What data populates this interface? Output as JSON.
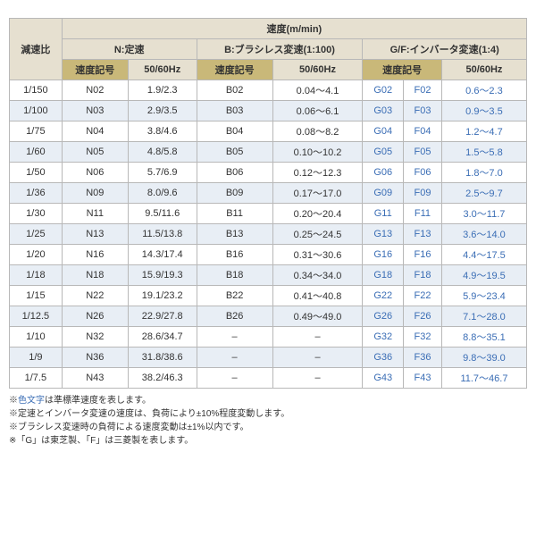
{
  "headers": {
    "ratio": "減速比",
    "speed": "速度(m/min)",
    "n": "N:定速",
    "b": "B:ブラシレス変速(1:100)",
    "gf": "G/F:インバータ変速(1:4)",
    "code": "速度記号",
    "hz": "50/60Hz"
  },
  "rows": [
    {
      "ratio": "1/150",
      "n_code": "N02",
      "n_hz": "1.9/2.3",
      "b_code": "B02",
      "b_hz": "0.04～4.1",
      "g_code": "G02",
      "f_code": "F02",
      "gf_hz": "0.6～2.3"
    },
    {
      "ratio": "1/100",
      "n_code": "N03",
      "n_hz": "2.9/3.5",
      "b_code": "B03",
      "b_hz": "0.06～6.1",
      "g_code": "G03",
      "f_code": "F03",
      "gf_hz": "0.9～3.5"
    },
    {
      "ratio": "1/75",
      "n_code": "N04",
      "n_hz": "3.8/4.6",
      "b_code": "B04",
      "b_hz": "0.08～8.2",
      "g_code": "G04",
      "f_code": "F04",
      "gf_hz": "1.2～4.7"
    },
    {
      "ratio": "1/60",
      "n_code": "N05",
      "n_hz": "4.8/5.8",
      "b_code": "B05",
      "b_hz": "0.10～10.2",
      "g_code": "G05",
      "f_code": "F05",
      "gf_hz": "1.5～5.8"
    },
    {
      "ratio": "1/50",
      "n_code": "N06",
      "n_hz": "5.7/6.9",
      "b_code": "B06",
      "b_hz": "0.12～12.3",
      "g_code": "G06",
      "f_code": "F06",
      "gf_hz": "1.8～7.0"
    },
    {
      "ratio": "1/36",
      "n_code": "N09",
      "n_hz": "8.0/9.6",
      "b_code": "B09",
      "b_hz": "0.17～17.0",
      "g_code": "G09",
      "f_code": "F09",
      "gf_hz": "2.5～9.7"
    },
    {
      "ratio": "1/30",
      "n_code": "N11",
      "n_hz": "9.5/11.6",
      "b_code": "B11",
      "b_hz": "0.20～20.4",
      "g_code": "G11",
      "f_code": "F11",
      "gf_hz": "3.0～11.7"
    },
    {
      "ratio": "1/25",
      "n_code": "N13",
      "n_hz": "11.5/13.8",
      "b_code": "B13",
      "b_hz": "0.25～24.5",
      "g_code": "G13",
      "f_code": "F13",
      "gf_hz": "3.6～14.0"
    },
    {
      "ratio": "1/20",
      "n_code": "N16",
      "n_hz": "14.3/17.4",
      "b_code": "B16",
      "b_hz": "0.31～30.6",
      "g_code": "G16",
      "f_code": "F16",
      "gf_hz": "4.4～17.5"
    },
    {
      "ratio": "1/18",
      "n_code": "N18",
      "n_hz": "15.9/19.3",
      "b_code": "B18",
      "b_hz": "0.34～34.0",
      "g_code": "G18",
      "f_code": "F18",
      "gf_hz": "4.9～19.5"
    },
    {
      "ratio": "1/15",
      "n_code": "N22",
      "n_hz": "19.1/23.2",
      "b_code": "B22",
      "b_hz": "0.41～40.8",
      "g_code": "G22",
      "f_code": "F22",
      "gf_hz": "5.9～23.4"
    },
    {
      "ratio": "1/12.5",
      "n_code": "N26",
      "n_hz": "22.9/27.8",
      "b_code": "B26",
      "b_hz": "0.49～49.0",
      "g_code": "G26",
      "f_code": "F26",
      "gf_hz": "7.1～28.0"
    },
    {
      "ratio": "1/10",
      "n_code": "N32",
      "n_hz": "28.6/34.7",
      "b_code": "–",
      "b_hz": "–",
      "g_code": "G32",
      "f_code": "F32",
      "gf_hz": "8.8～35.1"
    },
    {
      "ratio": "1/9",
      "n_code": "N36",
      "n_hz": "31.8/38.6",
      "b_code": "–",
      "b_hz": "–",
      "g_code": "G36",
      "f_code": "F36",
      "gf_hz": "9.8～39.0"
    },
    {
      "ratio": "1/7.5",
      "n_code": "N43",
      "n_hz": "38.2/46.3",
      "b_code": "–",
      "b_hz": "–",
      "g_code": "G43",
      "f_code": "F43",
      "gf_hz": "11.7～46.7"
    }
  ],
  "notes": {
    "n1a": "※",
    "n1b": "色文字",
    "n1c": "は準標準速度を表します。",
    "n2": "※定速とインバータ変速の速度は、負荷により±10%程度変動します。",
    "n3": "※ブラシレス変速時の負荷による速度変動は±1%以内です。",
    "n4": "※「G」は東芝製、「F」は三菱製を表します。"
  }
}
